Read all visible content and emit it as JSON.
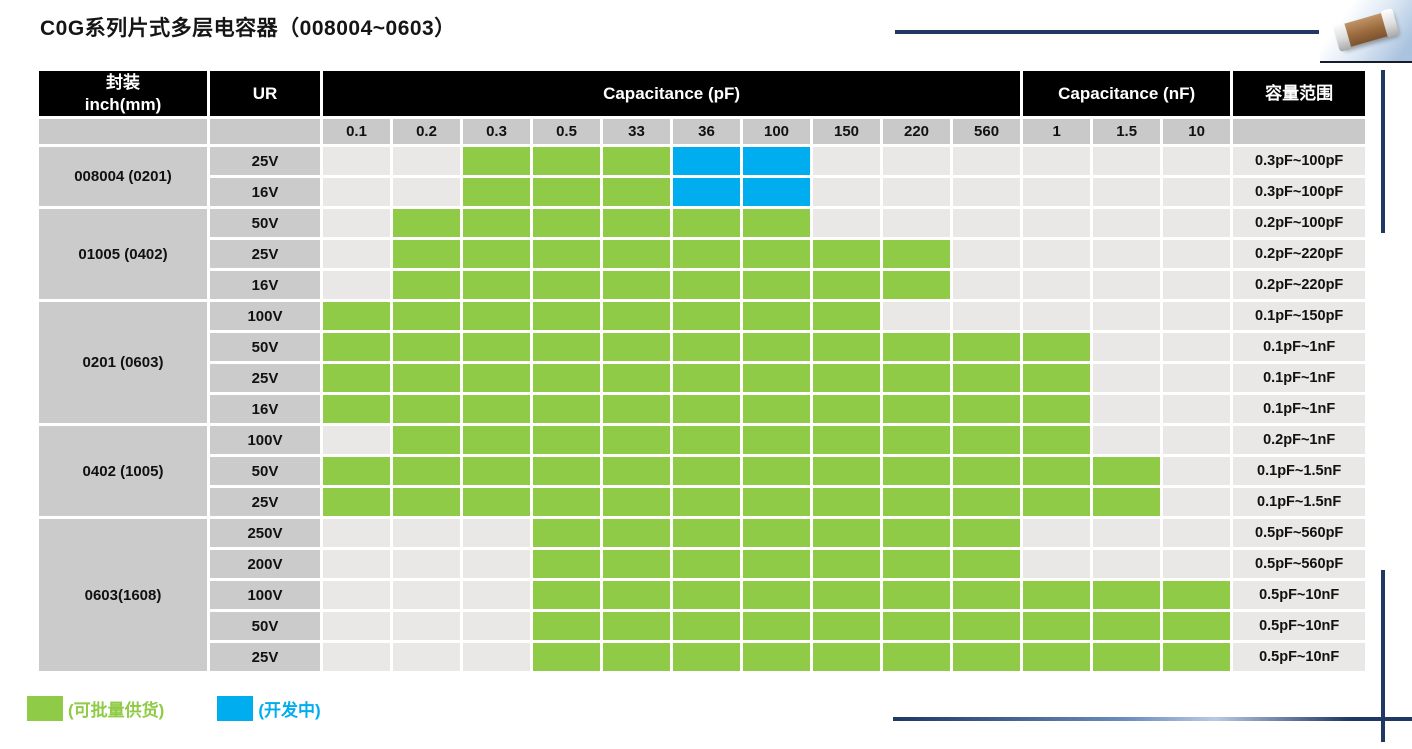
{
  "title": "C0G系列片式多层电容器（008004~0603）",
  "colors": {
    "available_green": "#8FCB46",
    "developing_blue": "#00AEEF",
    "accent_navy": "#1F3864",
    "header_black": "#000000",
    "label_gray": "#CBCBCB",
    "subheader_gray": "#C9C9C9",
    "empty_cell_gray": "#E9E8E6"
  },
  "icons": {
    "capacitor_photo": "mlcc-capacitor-icon"
  },
  "table": {
    "header": {
      "package_line1": "封装",
      "package_line2": "inch(mm)",
      "ur": "UR",
      "cap_pf": "Capacitance (pF)",
      "cap_nf": "Capacitance (nF)",
      "range": "容量范围"
    },
    "columns_pf": [
      "0.1",
      "0.2",
      "0.3",
      "0.5",
      "33",
      "36",
      "100",
      "150",
      "220",
      "560"
    ],
    "columns_nf": [
      "1",
      "1.5",
      "10"
    ],
    "groups": [
      {
        "package": "008004 (0201)",
        "rows": [
          {
            "ur": "25V",
            "cells": [
              "",
              "",
              "g",
              "g",
              "g",
              "b",
              "b",
              "",
              "",
              "",
              "",
              "",
              ""
            ],
            "range": "0.3pF~100pF"
          },
          {
            "ur": "16V",
            "cells": [
              "",
              "",
              "g",
              "g",
              "g",
              "b",
              "b",
              "",
              "",
              "",
              "",
              "",
              ""
            ],
            "range": "0.3pF~100pF"
          }
        ]
      },
      {
        "package": "01005 (0402)",
        "rows": [
          {
            "ur": "50V",
            "cells": [
              "",
              "g",
              "g",
              "g",
              "g",
              "g",
              "g",
              "",
              "",
              "",
              "",
              "",
              ""
            ],
            "range": "0.2pF~100pF"
          },
          {
            "ur": "25V",
            "cells": [
              "",
              "g",
              "g",
              "g",
              "g",
              "g",
              "g",
              "g",
              "g",
              "",
              "",
              "",
              ""
            ],
            "range": "0.2pF~220pF"
          },
          {
            "ur": "16V",
            "cells": [
              "",
              "g",
              "g",
              "g",
              "g",
              "g",
              "g",
              "g",
              "g",
              "",
              "",
              "",
              ""
            ],
            "range": "0.2pF~220pF"
          }
        ]
      },
      {
        "package": "0201 (0603)",
        "rows": [
          {
            "ur": "100V",
            "cells": [
              "g",
              "g",
              "g",
              "g",
              "g",
              "g",
              "g",
              "g",
              "",
              "",
              "",
              "",
              ""
            ],
            "range": "0.1pF~150pF"
          },
          {
            "ur": "50V",
            "cells": [
              "g",
              "g",
              "g",
              "g",
              "g",
              "g",
              "g",
              "g",
              "g",
              "g",
              "g",
              "",
              ""
            ],
            "range": "0.1pF~1nF"
          },
          {
            "ur": "25V",
            "cells": [
              "g",
              "g",
              "g",
              "g",
              "g",
              "g",
              "g",
              "g",
              "g",
              "g",
              "g",
              "",
              ""
            ],
            "range": "0.1pF~1nF"
          },
          {
            "ur": "16V",
            "cells": [
              "g",
              "g",
              "g",
              "g",
              "g",
              "g",
              "g",
              "g",
              "g",
              "g",
              "g",
              "",
              ""
            ],
            "range": "0.1pF~1nF"
          }
        ]
      },
      {
        "package": "0402 (1005)",
        "rows": [
          {
            "ur": "100V",
            "cells": [
              "",
              "g",
              "g",
              "g",
              "g",
              "g",
              "g",
              "g",
              "g",
              "g",
              "g",
              "",
              ""
            ],
            "range": "0.2pF~1nF"
          },
          {
            "ur": "50V",
            "cells": [
              "g",
              "g",
              "g",
              "g",
              "g",
              "g",
              "g",
              "g",
              "g",
              "g",
              "g",
              "g",
              ""
            ],
            "range": "0.1pF~1.5nF"
          },
          {
            "ur": "25V",
            "cells": [
              "g",
              "g",
              "g",
              "g",
              "g",
              "g",
              "g",
              "g",
              "g",
              "g",
              "g",
              "g",
              ""
            ],
            "range": "0.1pF~1.5nF"
          }
        ]
      },
      {
        "package": "0603(1608)",
        "rows": [
          {
            "ur": "250V",
            "cells": [
              "",
              "",
              "",
              "g",
              "g",
              "g",
              "g",
              "g",
              "g",
              "g",
              "",
              "",
              ""
            ],
            "range": "0.5pF~560pF"
          },
          {
            "ur": "200V",
            "cells": [
              "",
              "",
              "",
              "g",
              "g",
              "g",
              "g",
              "g",
              "g",
              "g",
              "",
              "",
              ""
            ],
            "range": "0.5pF~560pF"
          },
          {
            "ur": "100V",
            "cells": [
              "",
              "",
              "",
              "g",
              "g",
              "g",
              "g",
              "g",
              "g",
              "g",
              "g",
              "g",
              "g"
            ],
            "range": "0.5pF~10nF"
          },
          {
            "ur": "50V",
            "cells": [
              "",
              "",
              "",
              "g",
              "g",
              "g",
              "g",
              "g",
              "g",
              "g",
              "g",
              "g",
              "g"
            ],
            "range": "0.5pF~10nF"
          },
          {
            "ur": "25V",
            "cells": [
              "",
              "",
              "",
              "g",
              "g",
              "g",
              "g",
              "g",
              "g",
              "g",
              "g",
              "g",
              "g"
            ],
            "range": "0.5pF~10nF"
          }
        ]
      }
    ]
  },
  "legend": {
    "available": {
      "label": "(可批量供货)"
    },
    "developing": {
      "label": "(开发中)"
    }
  }
}
